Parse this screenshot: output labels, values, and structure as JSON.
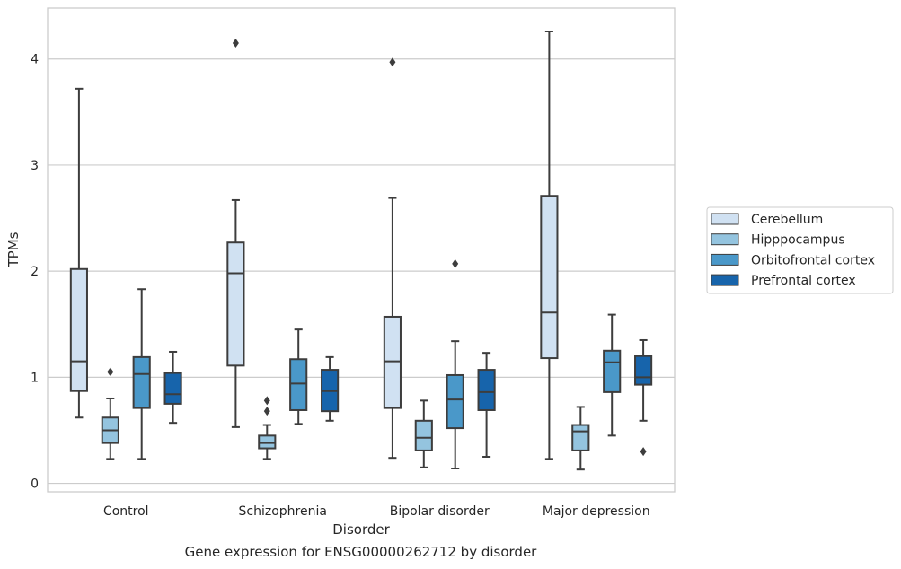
{
  "caption": "Gene expression for ENSG00000262712 by disorder",
  "chart_data": {
    "type": "box",
    "title": "",
    "xlabel": "Disorder",
    "ylabel": "TPMs",
    "categories": [
      "Control",
      "Schizophrenia",
      "Bipolar disorder",
      "Major depression"
    ],
    "ylim": [
      -0.08,
      4.48
    ],
    "yticks": [
      "0",
      "1",
      "2",
      "3",
      "4"
    ],
    "grid": true,
    "legend": {
      "position": "right"
    },
    "series": [
      {
        "name": "Cerebellum",
        "color": "#d0e1f2",
        "boxes": [
          {
            "whisker_low": 0.62,
            "q1": 0.87,
            "median": 1.15,
            "q3": 2.02,
            "whisker_high": 3.72,
            "outliers": []
          },
          {
            "whisker_low": 0.53,
            "q1": 1.11,
            "median": 1.98,
            "q3": 2.27,
            "whisker_high": 2.67,
            "outliers": [
              4.15
            ]
          },
          {
            "whisker_low": 0.24,
            "q1": 0.71,
            "median": 1.15,
            "q3": 1.57,
            "whisker_high": 2.69,
            "outliers": [
              3.97
            ]
          },
          {
            "whisker_low": 0.23,
            "q1": 1.18,
            "median": 1.61,
            "q3": 2.71,
            "whisker_high": 4.26,
            "outliers": []
          }
        ]
      },
      {
        "name": "Hipppocampus",
        "color": "#94c4df",
        "boxes": [
          {
            "whisker_low": 0.23,
            "q1": 0.38,
            "median": 0.5,
            "q3": 0.62,
            "whisker_high": 0.8,
            "outliers": [
              1.05
            ]
          },
          {
            "whisker_low": 0.23,
            "q1": 0.33,
            "median": 0.38,
            "q3": 0.45,
            "whisker_high": 0.55,
            "outliers": [
              0.78,
              0.68
            ]
          },
          {
            "whisker_low": 0.15,
            "q1": 0.31,
            "median": 0.43,
            "q3": 0.59,
            "whisker_high": 0.78,
            "outliers": []
          },
          {
            "whisker_low": 0.13,
            "q1": 0.31,
            "median": 0.49,
            "q3": 0.55,
            "whisker_high": 0.72,
            "outliers": []
          }
        ]
      },
      {
        "name": "Orbitofrontal cortex",
        "color": "#4a98c9",
        "boxes": [
          {
            "whisker_low": 0.23,
            "q1": 0.71,
            "median": 1.03,
            "q3": 1.19,
            "whisker_high": 1.83,
            "outliers": []
          },
          {
            "whisker_low": 0.56,
            "q1": 0.69,
            "median": 0.94,
            "q3": 1.17,
            "whisker_high": 1.45,
            "outliers": []
          },
          {
            "whisker_low": 0.14,
            "q1": 0.52,
            "median": 0.79,
            "q3": 1.02,
            "whisker_high": 1.34,
            "outliers": [
              2.07
            ]
          },
          {
            "whisker_low": 0.45,
            "q1": 0.86,
            "median": 1.14,
            "q3": 1.25,
            "whisker_high": 1.59,
            "outliers": []
          }
        ]
      },
      {
        "name": "Prefrontal cortex",
        "color": "#1764ab",
        "boxes": [
          {
            "whisker_low": 0.57,
            "q1": 0.75,
            "median": 0.84,
            "q3": 1.04,
            "whisker_high": 1.24,
            "outliers": []
          },
          {
            "whisker_low": 0.59,
            "q1": 0.68,
            "median": 0.87,
            "q3": 1.07,
            "whisker_high": 1.19,
            "outliers": []
          },
          {
            "whisker_low": 0.25,
            "q1": 0.69,
            "median": 0.86,
            "q3": 1.07,
            "whisker_high": 1.23,
            "outliers": []
          },
          {
            "whisker_low": 0.59,
            "q1": 0.93,
            "median": 1.0,
            "q3": 1.2,
            "whisker_high": 1.35,
            "outliers": [
              0.3
            ]
          }
        ]
      }
    ]
  }
}
